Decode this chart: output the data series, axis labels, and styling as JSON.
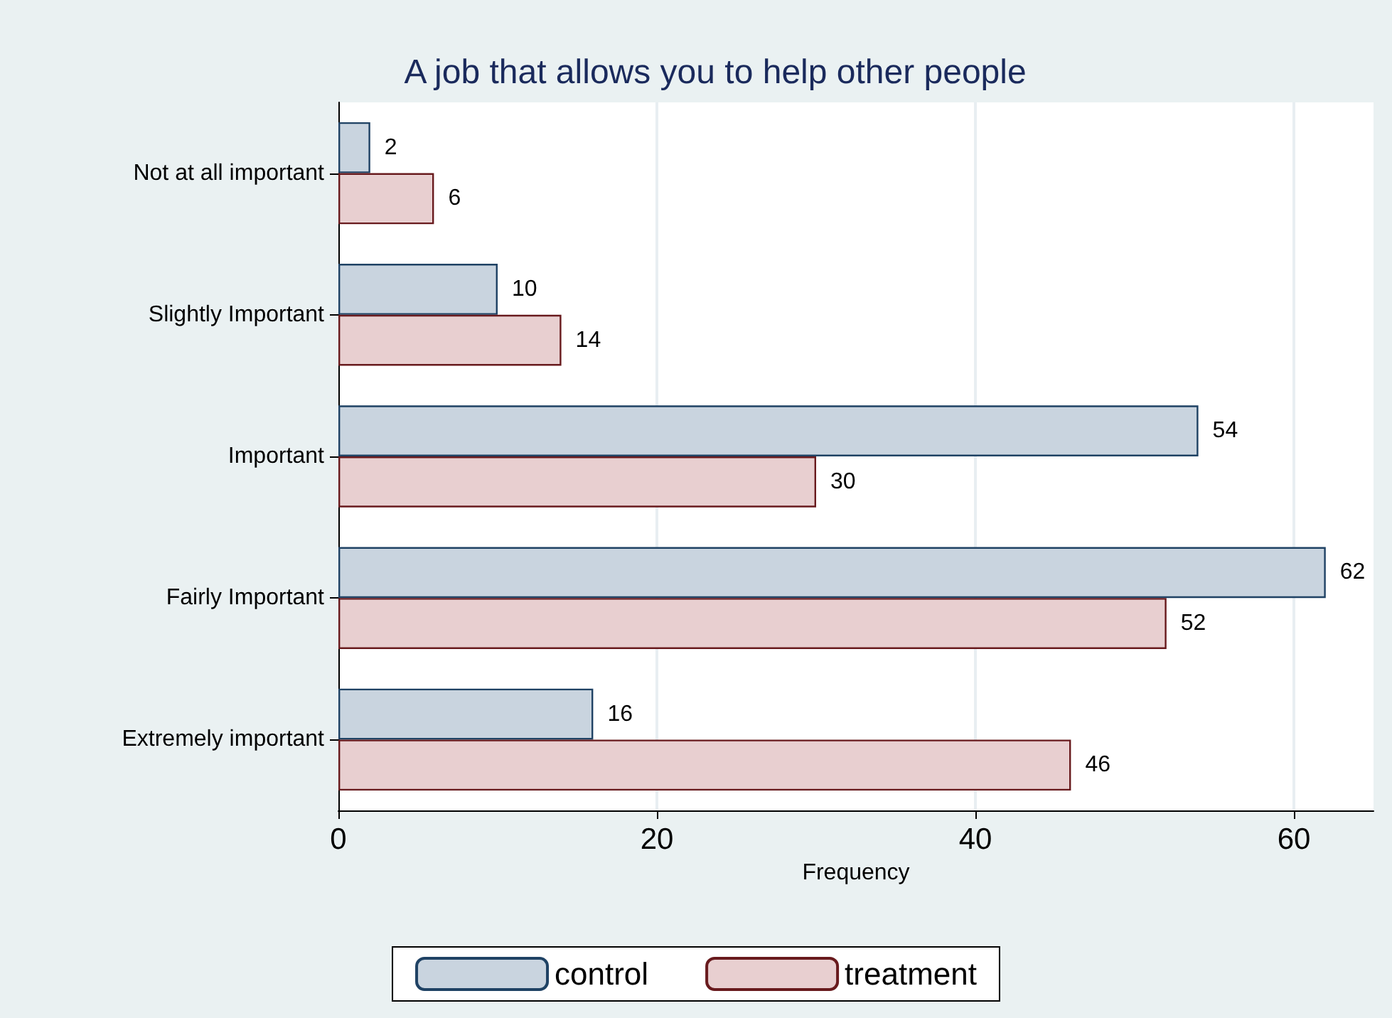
{
  "chart_data": {
    "type": "bar",
    "orientation": "horizontal",
    "title": "A job that allows you to help other people",
    "xlabel": "Frequency",
    "categories": [
      "Not at all important",
      "Slightly Important",
      "Important",
      "Fairly Important",
      "Extremely important"
    ],
    "series": [
      {
        "name": "control",
        "color": "#c9d4df",
        "values": [
          2,
          10,
          54,
          62,
          16
        ]
      },
      {
        "name": "treatment",
        "color": "#e8cfd0",
        "values": [
          6,
          14,
          30,
          52,
          46
        ]
      }
    ],
    "xlim": [
      0,
      65
    ],
    "xticks": [
      0,
      20,
      40,
      60
    ],
    "grid": "x",
    "data_labels": true,
    "legend": "bottom"
  }
}
